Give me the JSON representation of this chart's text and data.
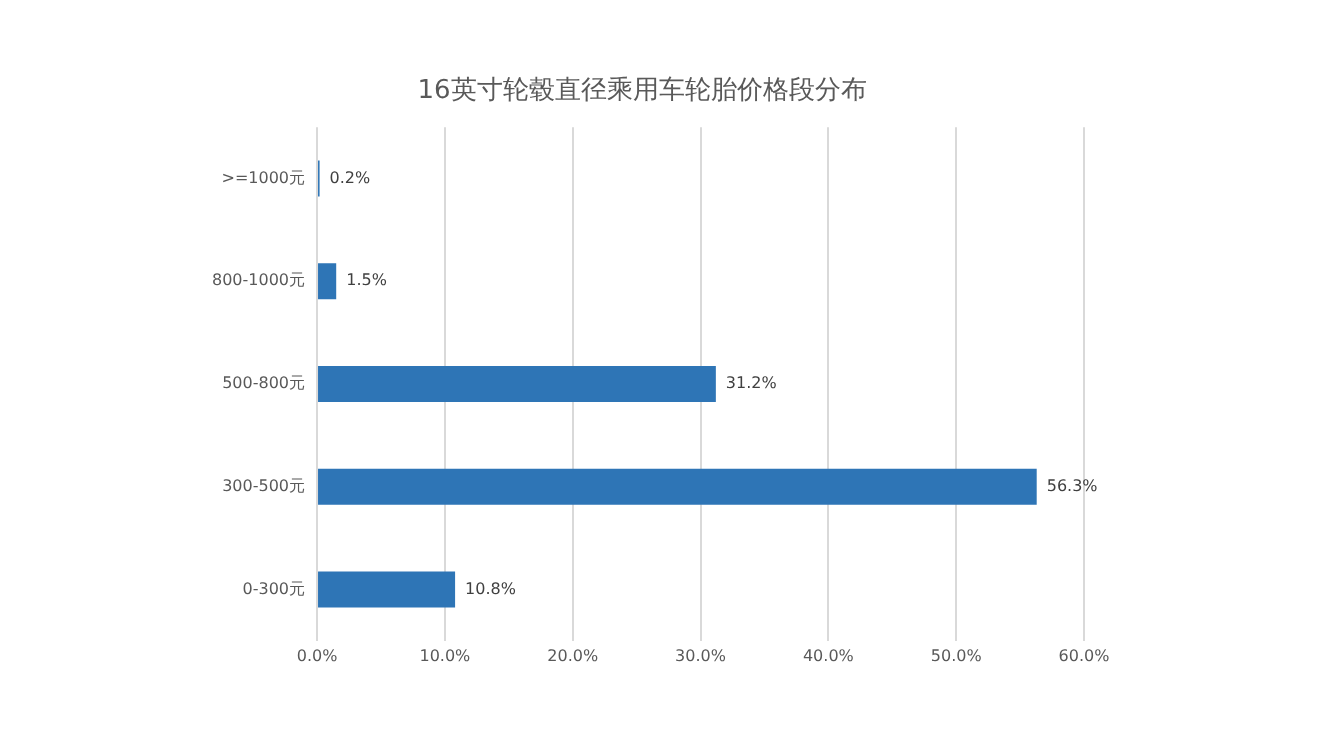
{
  "chart_data": {
    "type": "bar",
    "orientation": "horizontal",
    "title": "16英寸轮毂直径乘用车轮胎价格段分布",
    "categories": [
      ">=1000元",
      "800-1000元",
      "500-800元",
      "300-500元",
      "0-300元"
    ],
    "values": [
      0.2,
      1.5,
      31.2,
      56.3,
      10.8
    ],
    "value_labels": [
      "0.2%",
      "1.5%",
      "31.2%",
      "56.3%",
      "10.8%"
    ],
    "color": "#2e75b6",
    "xlim": [
      0,
      60
    ],
    "xticks": [
      {
        "value": 0,
        "label": "0.0%"
      },
      {
        "value": 10,
        "label": "10.0%"
      },
      {
        "value": 20,
        "label": "20.0%"
      },
      {
        "value": 30,
        "label": "30.0%"
      },
      {
        "value": 40,
        "label": "40.0%"
      },
      {
        "value": 50,
        "label": "50.0%"
      },
      {
        "value": 60,
        "label": "60.0%"
      }
    ],
    "grid": "x",
    "legend": false
  }
}
